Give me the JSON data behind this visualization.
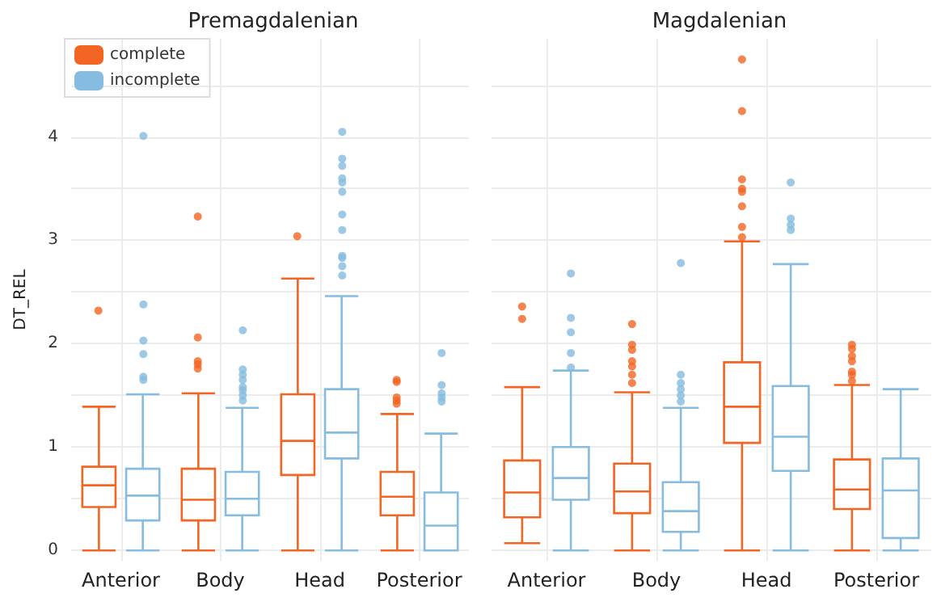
{
  "chart_data": [
    {
      "type": "box",
      "title": "Premagdalenian",
      "ylabel": "DT_REL",
      "categories": [
        "Anterior",
        "Body",
        "Head",
        "Posterior"
      ],
      "ylim": [
        -0.1,
        4.95
      ],
      "yticks": [
        0,
        {
          "value": 0.5,
          "label": null
        },
        1,
        {
          "value": 1.5,
          "label": null
        },
        2,
        {
          "value": 2.5,
          "label": null
        },
        3,
        {
          "value": 3.5,
          "label": null
        },
        4,
        {
          "value": 4.5,
          "label": null
        }
      ],
      "grid": true,
      "legend": "top left",
      "series": [
        {
          "name": "complete",
          "color": "#f26522",
          "boxes": [
            {
              "low": 0,
              "q1": 0.42,
              "median": 0.63,
              "q3": 0.81,
              "high": 1.39,
              "outliers": [
                2.32
              ]
            },
            {
              "low": 0,
              "q1": 0.29,
              "median": 0.49,
              "q3": 0.79,
              "high": 1.52,
              "outliers": [
                1.76,
                1.8,
                1.83,
                2.06,
                3.23
              ]
            },
            {
              "low": 0,
              "q1": 0.73,
              "median": 1.06,
              "q3": 1.51,
              "high": 2.63,
              "outliers": [
                3.04
              ]
            },
            {
              "low": 0,
              "q1": 0.34,
              "median": 0.52,
              "q3": 0.76,
              "high": 1.32,
              "outliers": [
                1.42,
                1.45,
                1.48,
                1.63,
                1.65
              ]
            }
          ]
        },
        {
          "name": "incomplete",
          "color": "#85bce0",
          "boxes": [
            {
              "low": 0,
              "q1": 0.29,
              "median": 0.53,
              "q3": 0.79,
              "high": 1.51,
              "outliers": [
                1.65,
                1.68,
                1.9,
                2.03,
                2.38,
                4.01
              ]
            },
            {
              "low": 0,
              "q1": 0.34,
              "median": 0.5,
              "q3": 0.76,
              "high": 1.38,
              "outliers": [
                1.45,
                1.5,
                1.55,
                1.58,
                1.65,
                1.7,
                1.75,
                2.13
              ]
            },
            {
              "low": 0,
              "q1": 0.89,
              "median": 1.14,
              "q3": 1.56,
              "high": 2.46,
              "outliers": [
                2.66,
                2.75,
                2.83,
                2.85,
                3.1,
                3.25,
                3.47,
                3.56,
                3.6,
                3.72,
                3.79,
                4.05
              ]
            },
            {
              "low": 0,
              "q1": 0,
              "median": 0.24,
              "q3": 0.56,
              "high": 1.13,
              "outliers": [
                1.44,
                1.48,
                1.52,
                1.6,
                1.91
              ]
            }
          ]
        }
      ]
    },
    {
      "type": "box",
      "title": "Magdalenian",
      "categories": [
        "Anterior",
        "Body",
        "Head",
        "Posterior"
      ],
      "ylim": [
        -0.1,
        4.95
      ],
      "yticks": [
        0,
        {
          "value": 0.5,
          "label": null
        },
        1,
        {
          "value": 1.5,
          "label": null
        },
        2,
        {
          "value": 2.5,
          "label": null
        },
        3,
        {
          "value": 3.5,
          "label": null
        },
        4,
        {
          "value": 4.5,
          "label": null
        }
      ],
      "grid": true,
      "tick_labels": "x",
      "series": [
        {
          "color": "#f26522",
          "boxes": [
            {
              "low": 0.07,
              "q1": 0.32,
              "median": 0.56,
              "q3": 0.87,
              "high": 1.58,
              "outliers": [
                2.24,
                2.36
              ]
            },
            {
              "low": 0,
              "q1": 0.36,
              "median": 0.57,
              "q3": 0.84,
              "high": 1.53,
              "outliers": [
                1.62,
                1.7,
                1.78,
                1.83,
                1.94,
                1.99,
                2.19
              ]
            },
            {
              "low": 0,
              "q1": 1.04,
              "median": 1.39,
              "q3": 1.82,
              "high": 2.99,
              "outliers": [
                3.03,
                3.13,
                3.33,
                3.47,
                3.5,
                3.59,
                4.25,
                4.75
              ]
            },
            {
              "low": 0,
              "q1": 0.4,
              "median": 0.59,
              "q3": 0.88,
              "high": 1.6,
              "outliers": [
                1.64,
                1.7,
                1.73,
                1.83,
                1.88,
                1.95,
                1.99
              ]
            }
          ]
        },
        {
          "color": "#85bce0",
          "boxes": [
            {
              "low": 0,
              "q1": 0.49,
              "median": 0.7,
              "q3": 1.0,
              "high": 1.74,
              "outliers": [
                1.77,
                1.91,
                2.11,
                2.25,
                2.68
              ]
            },
            {
              "low": 0,
              "q1": 0.18,
              "median": 0.38,
              "q3": 0.66,
              "high": 1.38,
              "outliers": [
                1.44,
                1.5,
                1.56,
                1.62,
                1.7,
                2.78
              ]
            },
            {
              "low": 0,
              "q1": 0.77,
              "median": 1.1,
              "q3": 1.59,
              "high": 2.77,
              "outliers": [
                3.1,
                3.15,
                3.21,
                3.56
              ]
            },
            {
              "low": 0,
              "q1": 0.12,
              "median": 0.58,
              "q3": 0.89,
              "high": 1.56
            }
          ]
        }
      ]
    }
  ]
}
